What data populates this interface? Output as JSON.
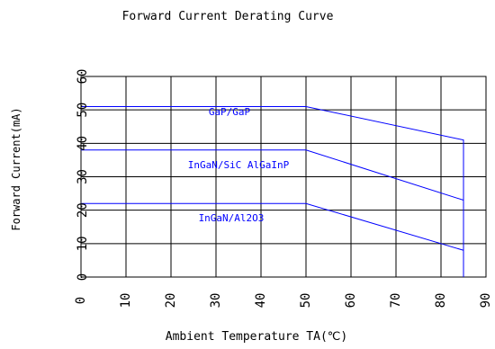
{
  "chart_data": {
    "type": "line",
    "title": "Forward Current Derating Curve",
    "xlabel": "Ambient Temperature TA(℃)",
    "ylabel": "Forward Current(mA)",
    "xlim": [
      0,
      90
    ],
    "ylim": [
      0,
      60
    ],
    "xticks": [
      0,
      10,
      20,
      30,
      40,
      50,
      60,
      70,
      80,
      90
    ],
    "yticks": [
      0,
      10,
      20,
      30,
      40,
      50,
      60
    ],
    "grid": true,
    "line_color": "#0000ff",
    "series": [
      {
        "name": "GaP/GaP",
        "x": [
          0,
          50,
          85,
          85
        ],
        "y": [
          51,
          51,
          41,
          0
        ]
      },
      {
        "name": "InGaN/SiC AlGaInP",
        "x": [
          0,
          50,
          85
        ],
        "y": [
          38,
          38,
          23
        ]
      },
      {
        "name": "InGaN/Al2O3",
        "x": [
          0,
          50,
          85
        ],
        "y": [
          22,
          22,
          8
        ]
      }
    ]
  }
}
